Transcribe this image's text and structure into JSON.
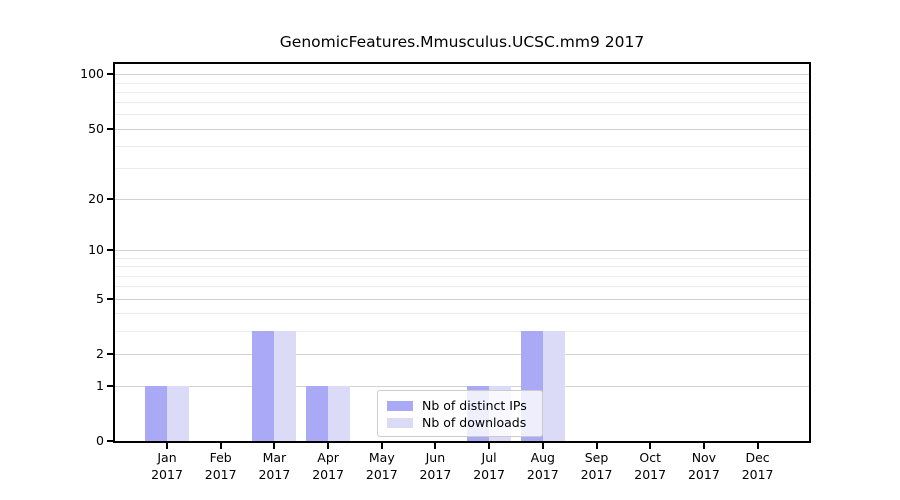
{
  "chart_data": {
    "type": "bar",
    "title": "GenomicFeatures.Mmusculus.UCSC.mm9 2017",
    "categories": [
      "Jan",
      "Feb",
      "Mar",
      "Apr",
      "May",
      "Jun",
      "Jul",
      "Aug",
      "Sep",
      "Oct",
      "Nov",
      "Dec"
    ],
    "year_label": "2017",
    "series": [
      {
        "name": "Nb of distinct IPs",
        "color": "#a9a9f6",
        "values": [
          1,
          0,
          3,
          1,
          0,
          0,
          1,
          3,
          0,
          0,
          0,
          0
        ]
      },
      {
        "name": "Nb of downloads",
        "color": "#dbdbf8",
        "values": [
          1,
          0,
          3,
          1,
          0,
          0,
          1,
          3,
          0,
          0,
          0,
          0
        ]
      }
    ],
    "y_scale": "log1p",
    "y_ticks": [
      0,
      1,
      2,
      5,
      10,
      20,
      50,
      100
    ],
    "y_minor_ticks": [
      3,
      4,
      6,
      7,
      8,
      9,
      30,
      40,
      60,
      70,
      80,
      90
    ],
    "ylim": [
      0,
      112
    ],
    "grid": true,
    "legend_position": "inside-bottom-center",
    "colors": {
      "grid_major": "#d2d2d2",
      "grid_minor": "#ececec",
      "axis": "#000000",
      "background": "#ffffff"
    }
  }
}
